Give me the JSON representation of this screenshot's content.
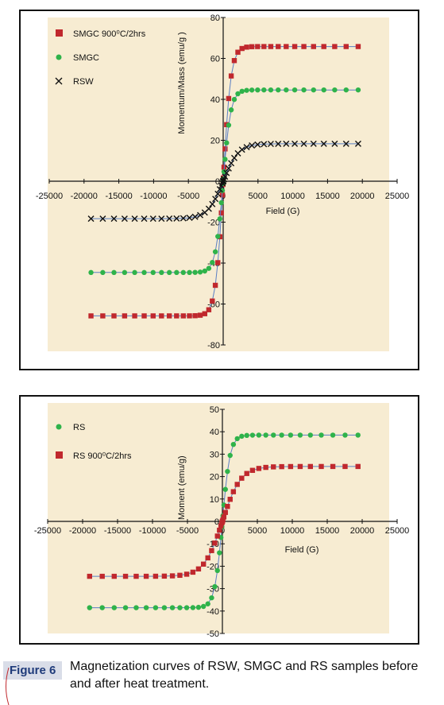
{
  "chart_data": [
    {
      "type": "scatter",
      "title": "",
      "xlabel": "Field (G)",
      "ylabel": "Momentum/Mass (emu/g )",
      "xlim": [
        -25000,
        25000
      ],
      "ylim": [
        -80,
        80
      ],
      "xticks": [
        "-25000",
        "-20000",
        "-15000",
        "-10000",
        "-5000",
        "0",
        "5000",
        "10000",
        "15000",
        "20000",
        "25000"
      ],
      "yticks": [
        "-80",
        "-60",
        "-40",
        "-20",
        "0",
        "20",
        "40",
        "60",
        "80"
      ],
      "legend_position": "top-left",
      "grid": false,
      "series": [
        {
          "name": "SMGC 900⁰C/2hrs",
          "marker": "square",
          "color": "#c0282d",
          "ms": 65.8,
          "hk": 1100
        },
        {
          "name": "SMGC",
          "marker": "circle",
          "color": "#2fb34a",
          "ms": 44.6,
          "hk": 1100
        },
        {
          "name": "RSW",
          "marker": "x",
          "color": "#111111",
          "ms": 18.3,
          "hk": 2200
        }
      ]
    },
    {
      "type": "scatter",
      "title": "",
      "xlabel": "Field (G)",
      "ylabel": "Moment (emu/g)",
      "xlim": [
        -25000,
        25000
      ],
      "ylim": [
        -50,
        50
      ],
      "xticks": [
        "-25000",
        "-20000",
        "-15000",
        "-10000",
        "-5000",
        "0",
        "5000",
        "10000",
        "15000",
        "20000",
        "25000"
      ],
      "yticks": [
        "-50",
        "-40",
        "-30",
        "-20",
        "-10",
        "0",
        "10",
        "20",
        "30",
        "40",
        "50"
      ],
      "legend_position": "top-left",
      "grid": false,
      "series": [
        {
          "name": "RS",
          "marker": "circle",
          "color": "#2fb34a",
          "ms": 38.5,
          "hk": 1100
        },
        {
          "name": "RS 900⁰C/2hrs",
          "marker": "square",
          "color": "#c0282d",
          "ms": 24.5,
          "hk": 2600
        }
      ]
    }
  ],
  "caption": {
    "label": "Figure 6",
    "text": "Magnetization curves of RSW, SMGC and RS samples before and after heat treatment."
  },
  "colors": {
    "plot_background": "#f7ecd2",
    "caption_label_bg": "#d9dde8",
    "caption_label_fg": "#1f3b7a",
    "fit_line": "#5a7fc4"
  }
}
